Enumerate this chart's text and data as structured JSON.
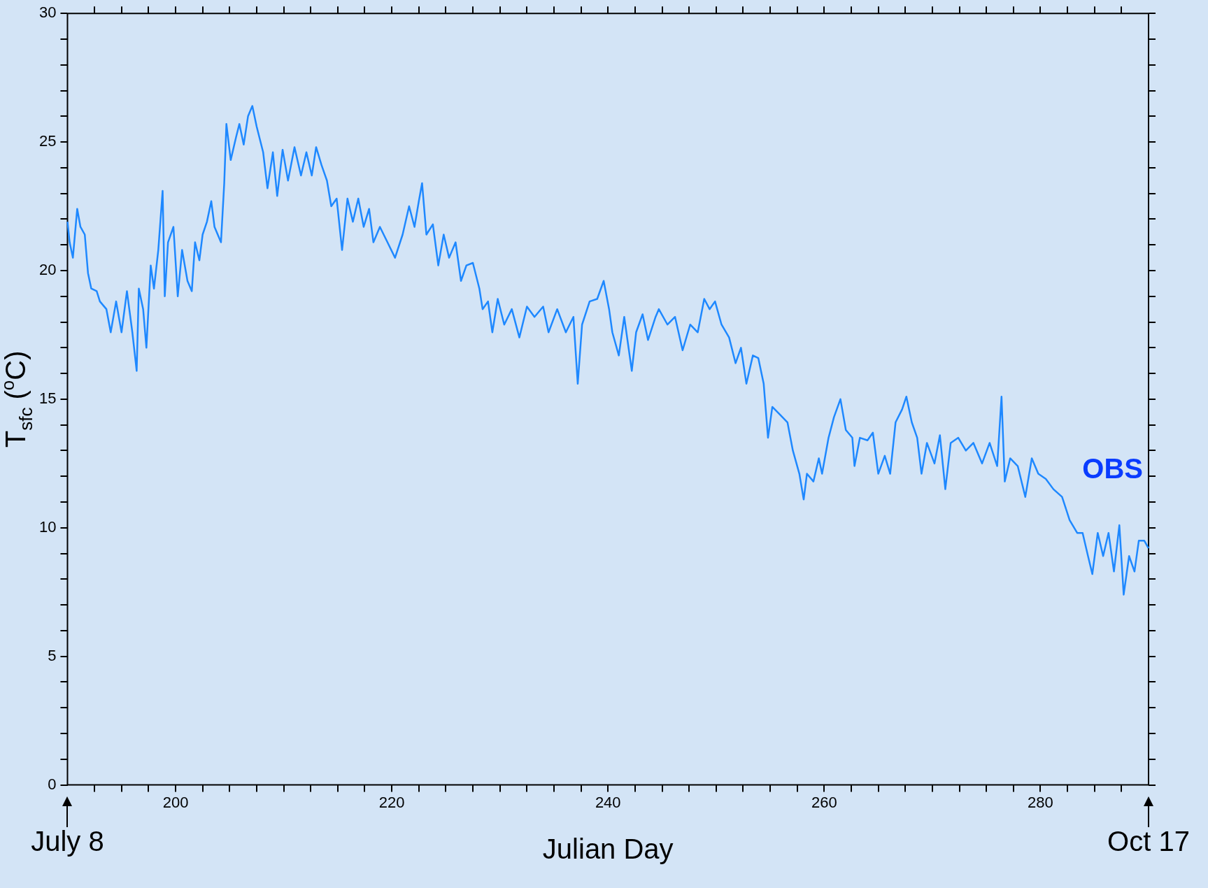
{
  "chart_data": {
    "type": "line",
    "xlabel": "Julian Day",
    "ylabel": "T$_{sfc}$ ($^{o}$C)",
    "xlim": [
      190,
      290
    ],
    "xticks": [
      {
        "value": 192.5,
        "label": null
      },
      {
        "value": 195,
        "label": null
      },
      {
        "value": 197.5,
        "label": null
      },
      200,
      {
        "value": 202.5,
        "label": null
      },
      {
        "value": 205,
        "label": null
      },
      {
        "value": 207.5,
        "label": null
      },
      {
        "value": 210,
        "label": null
      },
      {
        "value": 212.5,
        "label": null
      },
      {
        "value": 215,
        "label": null
      },
      {
        "value": 217.5,
        "label": null
      },
      220,
      {
        "value": 222.5,
        "label": null
      },
      {
        "value": 225,
        "label": null
      },
      {
        "value": 227.5,
        "label": null
      },
      {
        "value": 230,
        "label": null
      },
      {
        "value": 232.5,
        "label": null
      },
      {
        "value": 235,
        "label": null
      },
      {
        "value": 237.5,
        "label": null
      },
      240,
      {
        "value": 242.5,
        "label": null
      },
      {
        "value": 245,
        "label": null
      },
      {
        "value": 247.5,
        "label": null
      },
      {
        "value": 250,
        "label": null
      },
      {
        "value": 252.5,
        "label": null
      },
      {
        "value": 255,
        "label": null
      },
      {
        "value": 257.5,
        "label": null
      },
      260,
      {
        "value": 262.5,
        "label": null
      },
      {
        "value": 265,
        "label": null
      },
      {
        "value": 267.5,
        "label": null
      },
      {
        "value": 270,
        "label": null
      },
      {
        "value": 272.5,
        "label": null
      },
      {
        "value": 275,
        "label": null
      },
      {
        "value": 277.5,
        "label": null
      },
      280,
      {
        "value": 282.5,
        "label": null
      },
      {
        "value": 285,
        "label": null
      },
      {
        "value": 287.5,
        "label": null
      }
    ],
    "ylim": [
      0,
      30
    ],
    "yticks": [
      0,
      {
        "value": 1,
        "label": null
      },
      {
        "value": 2,
        "label": null
      },
      {
        "value": 3,
        "label": null
      },
      {
        "value": 4,
        "label": null
      },
      5,
      {
        "value": 6,
        "label": null
      },
      {
        "value": 7,
        "label": null
      },
      {
        "value": 8,
        "label": null
      },
      {
        "value": 9,
        "label": null
      },
      10,
      {
        "value": 11,
        "label": null
      },
      {
        "value": 12,
        "label": null
      },
      {
        "value": 13,
        "label": null
      },
      {
        "value": 14,
        "label": null
      },
      15,
      {
        "value": 16,
        "label": null
      },
      {
        "value": 17,
        "label": null
      },
      {
        "value": 18,
        "label": null
      },
      {
        "value": 19,
        "label": null
      },
      20,
      {
        "value": 21,
        "label": null
      },
      {
        "value": 22,
        "label": null
      },
      {
        "value": 23,
        "label": null
      },
      {
        "value": 24,
        "label": null
      },
      25,
      {
        "value": 26,
        "label": null
      },
      {
        "value": 27,
        "label": null
      },
      {
        "value": 28,
        "label": null
      },
      {
        "value": 29,
        "label": null
      },
      30
    ],
    "annotations": [
      "July 8",
      "Oct 17"
    ],
    "x": [
      190.0,
      190.2,
      190.5,
      190.9,
      191.2,
      191.6,
      191.9,
      192.2,
      192.7,
      193.0,
      193.6,
      194.0,
      194.5,
      195.0,
      195.5,
      196.0,
      196.4,
      196.6,
      197.0,
      197.3,
      197.7,
      198.0,
      198.4,
      198.8,
      199.0,
      199.3,
      199.8,
      200.2,
      200.6,
      201.1,
      201.5,
      201.8,
      202.2,
      202.5,
      202.9,
      203.3,
      203.6,
      204.2,
      204.5,
      204.7,
      205.1,
      205.6,
      205.9,
      206.3,
      206.7,
      207.1,
      207.5,
      208.1,
      208.5,
      209.0,
      209.4,
      209.9,
      210.4,
      211.0,
      211.6,
      212.1,
      212.6,
      213.0,
      213.5,
      214.0,
      214.4,
      214.9,
      215.4,
      215.9,
      216.4,
      216.9,
      217.4,
      217.9,
      218.3,
      218.9,
      219.6,
      220.3,
      221.0,
      221.6,
      222.1,
      222.5,
      222.8,
      223.2,
      223.8,
      224.3,
      224.8,
      225.3,
      225.9,
      226.4,
      226.9,
      227.5,
      228.1,
      228.4,
      228.9,
      229.3,
      229.8,
      230.4,
      231.1,
      231.8,
      232.5,
      233.2,
      234.0,
      234.5,
      235.3,
      236.1,
      236.8,
      237.2,
      237.6,
      238.3,
      239.0,
      239.6,
      240.1,
      240.4,
      241.0,
      241.5,
      242.2,
      242.6,
      243.2,
      243.7,
      244.4,
      244.7,
      245.5,
      246.2,
      246.9,
      247.6,
      248.3,
      248.9,
      249.4,
      249.9,
      250.5,
      251.2,
      251.8,
      252.3,
      252.8,
      253.4,
      253.9,
      254.4,
      254.8,
      255.2,
      255.9,
      256.6,
      257.1,
      257.7,
      258.1,
      258.4,
      259.0,
      259.5,
      259.8,
      260.4,
      260.9,
      261.5,
      262.0,
      262.6,
      262.8,
      263.3,
      264.0,
      264.5,
      265.0,
      265.6,
      266.1,
      266.6,
      267.2,
      267.6,
      268.1,
      268.6,
      269.0,
      269.5,
      270.2,
      270.7,
      271.2,
      271.7,
      272.4,
      273.1,
      273.8,
      274.6,
      275.3,
      276.0,
      276.4,
      276.7,
      277.2,
      277.9,
      278.6,
      279.2,
      279.8,
      280.5,
      281.2,
      282.0,
      282.7,
      283.4,
      283.9,
      284.4,
      284.8,
      285.3,
      285.8,
      286.3,
      286.8,
      287.3,
      287.7,
      288.2,
      288.7,
      289.1,
      289.6,
      290.0
    ],
    "series": [
      {
        "name": "OBS",
        "color": "#1e88ff",
        "values": [
          21.9,
          21.1,
          20.5,
          22.4,
          21.7,
          21.4,
          19.9,
          19.3,
          19.2,
          18.8,
          18.5,
          17.6,
          18.8,
          17.6,
          19.2,
          17.6,
          16.1,
          19.3,
          18.5,
          17.0,
          20.2,
          19.3,
          20.8,
          23.1,
          19.0,
          21.1,
          21.7,
          19.0,
          20.8,
          19.6,
          19.2,
          21.1,
          20.4,
          21.4,
          21.9,
          22.7,
          21.7,
          21.1,
          23.4,
          25.7,
          24.3,
          25.2,
          25.7,
          24.9,
          26.0,
          26.4,
          25.6,
          24.6,
          23.2,
          24.6,
          22.9,
          24.7,
          23.5,
          24.8,
          23.7,
          24.6,
          23.7,
          24.8,
          24.1,
          23.5,
          22.5,
          22.8,
          20.8,
          22.8,
          21.9,
          22.8,
          21.7,
          22.4,
          21.1,
          21.7,
          21.1,
          20.5,
          21.4,
          22.5,
          21.7,
          22.7,
          23.4,
          21.4,
          21.8,
          20.2,
          21.4,
          20.5,
          21.1,
          19.6,
          20.2,
          20.3,
          19.3,
          18.5,
          18.8,
          17.6,
          18.9,
          17.9,
          18.5,
          17.4,
          18.6,
          18.2,
          18.6,
          17.6,
          18.5,
          17.6,
          18.2,
          15.6,
          17.9,
          18.8,
          18.9,
          19.6,
          18.5,
          17.6,
          16.7,
          18.2,
          16.1,
          17.6,
          18.3,
          17.3,
          18.2,
          18.5,
          17.9,
          18.2,
          16.9,
          17.9,
          17.6,
          18.9,
          18.5,
          18.8,
          17.9,
          17.4,
          16.4,
          17.0,
          15.6,
          16.7,
          16.6,
          15.6,
          13.5,
          14.7,
          14.4,
          14.1,
          13.0,
          12.1,
          11.1,
          12.1,
          11.8,
          12.7,
          12.1,
          13.5,
          14.3,
          15.0,
          13.8,
          13.5,
          12.4,
          13.5,
          13.4,
          13.7,
          12.1,
          12.8,
          12.1,
          14.1,
          14.6,
          15.1,
          14.1,
          13.5,
          12.1,
          13.3,
          12.5,
          13.6,
          11.5,
          13.3,
          13.5,
          13.0,
          13.3,
          12.5,
          13.3,
          12.4,
          15.1,
          11.8,
          12.7,
          12.4,
          11.2,
          12.7,
          12.1,
          11.9,
          11.5,
          11.2,
          10.3,
          9.8,
          9.8,
          8.9,
          8.2,
          9.8,
          8.9,
          9.8,
          8.3,
          10.1,
          7.4,
          8.9,
          8.3,
          9.5,
          9.5,
          9.2
        ]
      }
    ]
  }
}
